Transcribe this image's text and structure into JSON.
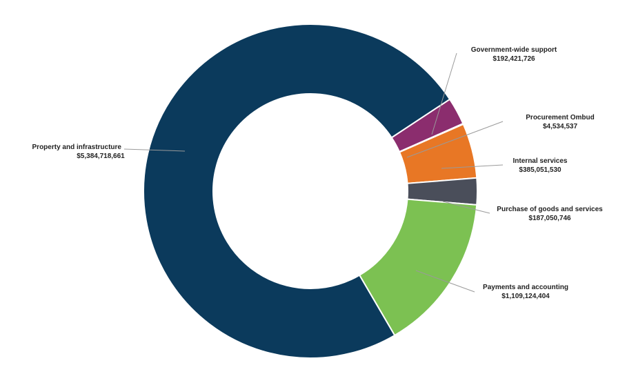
{
  "chart_data": {
    "type": "pie",
    "title": "",
    "series": [
      {
        "name": "",
        "values": [
          {
            "label": "Property and infrastructure",
            "value": 5384718661,
            "value_text": "$5,384,718,661",
            "color": "#0b3a5c"
          },
          {
            "label": "Government-wide support",
            "value": 192421726,
            "value_text": "$192,421,726",
            "color": "#8b2d6e"
          },
          {
            "label": "Procurement Ombud",
            "value": 4534537,
            "value_text": "$4,534,537",
            "color": "#3d7a4f"
          },
          {
            "label": "Internal services",
            "value": 385051530,
            "value_text": "$385,051,530",
            "color": "#e87725"
          },
          {
            "label": "Purchase of goods and services",
            "value": 187050746,
            "value_text": "$187,050,746",
            "color": "#4a4e5a"
          },
          {
            "label": "Payments and accounting",
            "value": 1109124404,
            "value_text": "$1,109,124,404",
            "color": "#7cc152"
          }
        ]
      }
    ],
    "donut": true,
    "legend": "none"
  }
}
